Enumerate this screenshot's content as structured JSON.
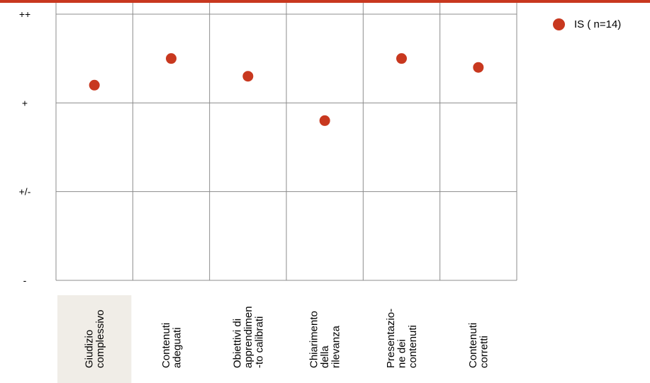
{
  "colors": {
    "accent_bar": "#c8381f",
    "marker": "#c8381f",
    "grid": "#8c8c8c",
    "highlight_bg": "#f0ede7"
  },
  "chart_data": {
    "type": "scatter",
    "y_tick_labels": [
      "-",
      "+/-",
      "+",
      "++"
    ],
    "ylim": [
      0,
      3
    ],
    "categories": [
      [
        "Giudizio",
        "complessivo"
      ],
      [
        "Contenuti",
        "adeguati"
      ],
      [
        "Obiettivi di",
        "apprendimen",
        "-to calibrati"
      ],
      [
        "Chiarimento",
        "della",
        "rilevanza"
      ],
      [
        "Presentazio-",
        "ne dei",
        "contenuti"
      ],
      [
        "Contenuti",
        "corretti"
      ]
    ],
    "highlighted_category": 0,
    "series": [
      {
        "name": "IS ( n=14)",
        "values": [
          2.2,
          2.5,
          2.3,
          1.8,
          2.5,
          2.4
        ]
      }
    ],
    "legend_position": "top-right",
    "grid": true
  }
}
